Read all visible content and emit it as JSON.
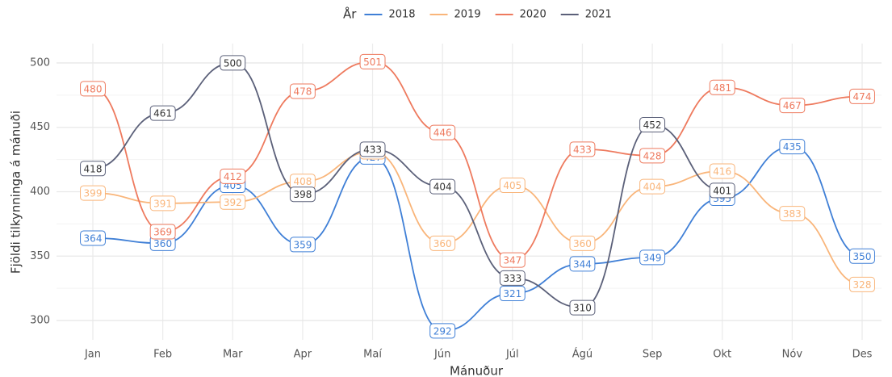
{
  "chart_data": {
    "type": "line",
    "legend_title": "År",
    "x_label": "Mánuður",
    "y_label": "Fjöldi tilkynninga á mánuði",
    "categories": [
      "Jan",
      "Feb",
      "Mar",
      "Apr",
      "Maí",
      "Jún",
      "Júl",
      "Ágú",
      "Sep",
      "Okt",
      "Nóv",
      "Des"
    ],
    "series": [
      {
        "name": "2018",
        "color": "#3f7fd6",
        "values": [
          364,
          360,
          405,
          359,
          427,
          292,
          321,
          344,
          349,
          395,
          435,
          350
        ]
      },
      {
        "name": "2019",
        "color": "#f9b57a",
        "values": [
          399,
          391,
          392,
          408,
          431,
          360,
          405,
          360,
          404,
          416,
          383,
          328
        ]
      },
      {
        "name": "2020",
        "color": "#ee7a5e",
        "values": [
          480,
          369,
          412,
          478,
          501,
          446,
          347,
          433,
          428,
          481,
          467,
          474
        ]
      },
      {
        "name": "2021",
        "color": "#5b6079",
        "values": [
          418,
          461,
          500,
          398,
          433,
          404,
          333,
          310,
          452,
          401,
          null,
          null
        ]
      }
    ],
    "ylim": [
      285,
      515
    ],
    "yticks": [
      300,
      350,
      400,
      450,
      500
    ],
    "grid": true,
    "legend_position": "top"
  }
}
